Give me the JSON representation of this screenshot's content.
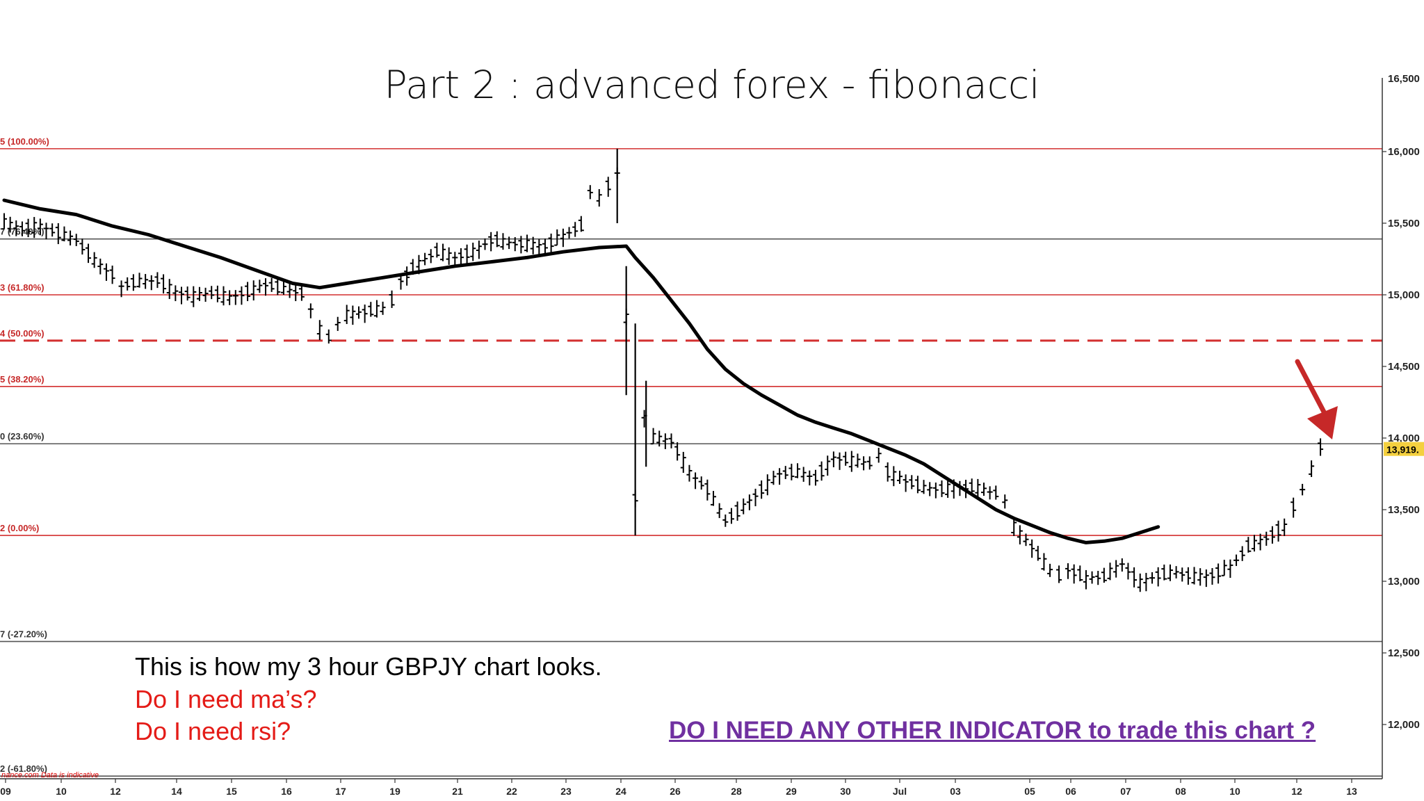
{
  "slide": {
    "title": "Part 2 : advanced forex - fibonacci",
    "caption_line1": "This is how my 3 hour GBPJY chart looks.",
    "caption_line2": "Do I need ma’s?",
    "caption_line3": "Do I need rsi?",
    "question": "DO I NEED ANY OTHER INDICATOR to trade this chart ?"
  },
  "chart_data": {
    "type": "candlestick",
    "title": "",
    "xlabel": "",
    "ylabel": "",
    "ylim": [
      11700,
      16250
    ],
    "y_ticks": [
      12000,
      12500,
      13000,
      13500,
      14000,
      14500,
      15000,
      15500,
      16000
    ],
    "y_tick_labels": [
      "12,000",
      "12,500",
      "13,000",
      "13,500",
      "14,000",
      "14,500",
      "15,000",
      "15,500",
      "16,000"
    ],
    "top_tick_label": "16,500",
    "x_tick_labels": [
      "09",
      "10",
      "12",
      "14",
      "15",
      "16",
      "17",
      "19",
      "21",
      "22",
      "23",
      "24",
      "26",
      "28",
      "29",
      "30",
      "Jul",
      "03",
      "05",
      "06",
      "07",
      "08",
      "10",
      "12",
      "13"
    ],
    "fib_levels": [
      {
        "label": "5 (100.00%)",
        "value": 16020,
        "color": "#d32f2f",
        "style": "solid"
      },
      {
        "label": "7 (76.40%)",
        "value": 15390,
        "color": "#555555",
        "style": "solid"
      },
      {
        "label": "3 (61.80%)",
        "value": 15000,
        "color": "#d32f2f",
        "style": "solid"
      },
      {
        "label": "4 (50.00%)",
        "value": 14680,
        "color": "#d32f2f",
        "style": "dashed"
      },
      {
        "label": "5 (38.20%)",
        "value": 14360,
        "color": "#d32f2f",
        "style": "solid"
      },
      {
        "label": "0 (23.60%)",
        "value": 13960,
        "color": "#555555",
        "style": "solid"
      },
      {
        "label": "2 (0.00%)",
        "value": 13320,
        "color": "#d32f2f",
        "style": "solid"
      },
      {
        "label": "7 (-27.20%)",
        "value": 12580,
        "color": "#555555",
        "style": "solid"
      },
      {
        "label": "2 (-61.80%)",
        "value": 11640,
        "color": "#555555",
        "style": "solid"
      }
    ],
    "last_price_label": "13,919.",
    "source_note": "nance.com  Data is indicative",
    "moving_average": {
      "name": "",
      "points": [
        [
          0,
          15660
        ],
        [
          40,
          15600
        ],
        [
          80,
          15560
        ],
        [
          120,
          15480
        ],
        [
          160,
          15420
        ],
        [
          200,
          15340
        ],
        [
          240,
          15260
        ],
        [
          280,
          15170
        ],
        [
          320,
          15080
        ],
        [
          350,
          15050
        ],
        [
          380,
          15080
        ],
        [
          420,
          15120
        ],
        [
          460,
          15160
        ],
        [
          500,
          15200
        ],
        [
          540,
          15230
        ],
        [
          580,
          15260
        ],
        [
          620,
          15300
        ],
        [
          660,
          15330
        ],
        [
          690,
          15340
        ],
        [
          700,
          15260
        ],
        [
          720,
          15120
        ],
        [
          740,
          14960
        ],
        [
          760,
          14800
        ],
        [
          780,
          14620
        ],
        [
          800,
          14480
        ],
        [
          820,
          14380
        ],
        [
          840,
          14300
        ],
        [
          860,
          14230
        ],
        [
          880,
          14160
        ],
        [
          900,
          14110
        ],
        [
          920,
          14070
        ],
        [
          940,
          14030
        ],
        [
          960,
          13980
        ],
        [
          980,
          13930
        ],
        [
          1000,
          13880
        ],
        [
          1020,
          13820
        ],
        [
          1040,
          13740
        ],
        [
          1060,
          13660
        ],
        [
          1080,
          13580
        ],
        [
          1100,
          13500
        ],
        [
          1120,
          13440
        ],
        [
          1140,
          13390
        ],
        [
          1160,
          13340
        ],
        [
          1180,
          13300
        ],
        [
          1200,
          13270
        ],
        [
          1220,
          13280
        ],
        [
          1240,
          13300
        ],
        [
          1260,
          13340
        ],
        [
          1280,
          13380
        ]
      ]
    },
    "bars_trend": [
      [
        0,
        15500
      ],
      [
        20,
        15460
      ],
      [
        40,
        15480
      ],
      [
        60,
        15430
      ],
      [
        80,
        15380
      ],
      [
        100,
        15240
      ],
      [
        120,
        15140
      ],
      [
        130,
        15060
      ],
      [
        150,
        15090
      ],
      [
        170,
        15100
      ],
      [
        190,
        15020
      ],
      [
        210,
        14990
      ],
      [
        230,
        15010
      ],
      [
        250,
        14980
      ],
      [
        270,
        15020
      ],
      [
        290,
        15070
      ],
      [
        310,
        15040
      ],
      [
        330,
        15010
      ],
      [
        340,
        14900
      ],
      [
        350,
        14760
      ],
      [
        360,
        14700
      ],
      [
        370,
        14800
      ],
      [
        380,
        14860
      ],
      [
        400,
        14880
      ],
      [
        420,
        14900
      ],
      [
        430,
        14960
      ],
      [
        440,
        15100
      ],
      [
        460,
        15220
      ],
      [
        480,
        15300
      ],
      [
        500,
        15260
      ],
      [
        520,
        15300
      ],
      [
        540,
        15380
      ],
      [
        560,
        15360
      ],
      [
        580,
        15350
      ],
      [
        600,
        15340
      ],
      [
        620,
        15410
      ],
      [
        640,
        15480
      ],
      [
        650,
        15720
      ],
      [
        660,
        15680
      ],
      [
        670,
        15760
      ],
      [
        680,
        15850
      ],
      [
        690,
        14840
      ],
      [
        700,
        13580
      ],
      [
        710,
        14150
      ],
      [
        720,
        14000
      ],
      [
        740,
        13980
      ],
      [
        760,
        13760
      ],
      [
        780,
        13640
      ],
      [
        800,
        13420
      ],
      [
        820,
        13520
      ],
      [
        840,
        13640
      ],
      [
        860,
        13750
      ],
      [
        880,
        13760
      ],
      [
        900,
        13720
      ],
      [
        920,
        13860
      ],
      [
        940,
        13840
      ],
      [
        960,
        13820
      ],
      [
        970,
        13880
      ],
      [
        980,
        13760
      ],
      [
        1000,
        13700
      ],
      [
        1020,
        13650
      ],
      [
        1040,
        13640
      ],
      [
        1060,
        13660
      ],
      [
        1080,
        13650
      ],
      [
        1100,
        13610
      ],
      [
        1110,
        13560
      ],
      [
        1120,
        13380
      ],
      [
        1140,
        13240
      ],
      [
        1160,
        13070
      ],
      [
        1170,
        13040
      ],
      [
        1180,
        13080
      ],
      [
        1200,
        13020
      ],
      [
        1220,
        13030
      ],
      [
        1240,
        13120
      ],
      [
        1260,
        12990
      ],
      [
        1280,
        13040
      ],
      [
        1300,
        13060
      ],
      [
        1320,
        13030
      ],
      [
        1340,
        13040
      ],
      [
        1360,
        13100
      ],
      [
        1380,
        13240
      ],
      [
        1400,
        13300
      ],
      [
        1420,
        13380
      ],
      [
        1430,
        13520
      ],
      [
        1440,
        13640
      ],
      [
        1450,
        13780
      ],
      [
        1460,
        13940
      ],
      [
        1470,
        13919
      ]
    ]
  }
}
